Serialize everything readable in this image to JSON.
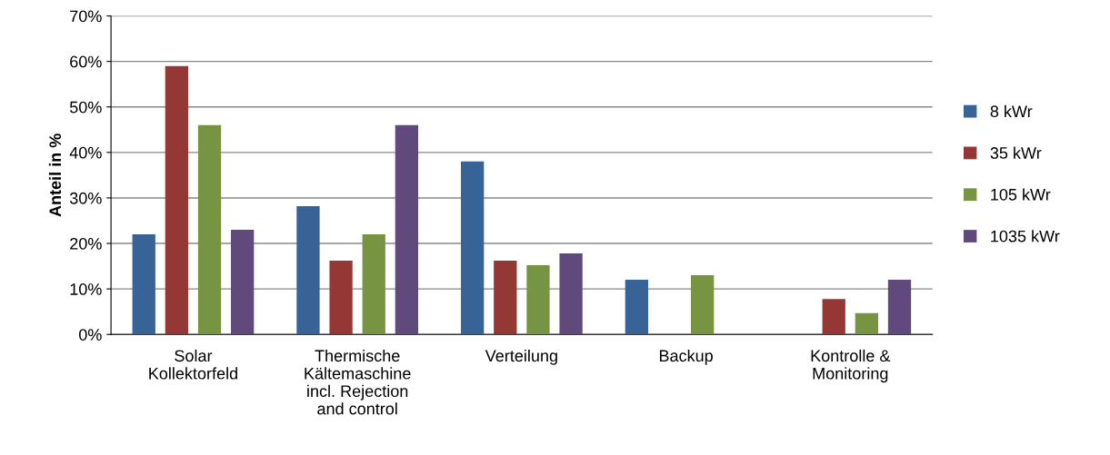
{
  "chart_data": {
    "type": "bar",
    "ylabel": "Anteil in %",
    "categories": [
      "Solar\nKollektorfeld",
      "Thermische\nKältemaschine\nincl. Rejection\nand control",
      "Verteilung",
      "Backup",
      "Kontrolle &\nMonitoring"
    ],
    "series": [
      {
        "name": "8 kWr",
        "color": "#386397",
        "values": [
          22,
          28.2,
          38,
          12,
          null
        ]
      },
      {
        "name": "35 kWr",
        "color": "#953735",
        "values": [
          59,
          16.2,
          16.2,
          null,
          7.8
        ]
      },
      {
        "name": "105 kWr",
        "color": "#779442",
        "values": [
          46,
          22,
          15.2,
          13,
          4.7
        ]
      },
      {
        "name": "1035 kWr",
        "color": "#604a7b",
        "values": [
          23,
          46,
          17.8,
          null,
          12
        ]
      }
    ],
    "ylim": [
      0,
      70
    ],
    "yticks": [
      {
        "value": 0,
        "label": "0%"
      },
      {
        "value": 10,
        "label": "10%"
      },
      {
        "value": 20,
        "label": "20%"
      },
      {
        "value": 30,
        "label": "30%"
      },
      {
        "value": 40,
        "label": "40%"
      },
      {
        "value": 50,
        "label": "50%"
      },
      {
        "value": 60,
        "label": "60%"
      },
      {
        "value": 70,
        "label": "70%"
      }
    ],
    "grid": "y",
    "legend": "right"
  }
}
